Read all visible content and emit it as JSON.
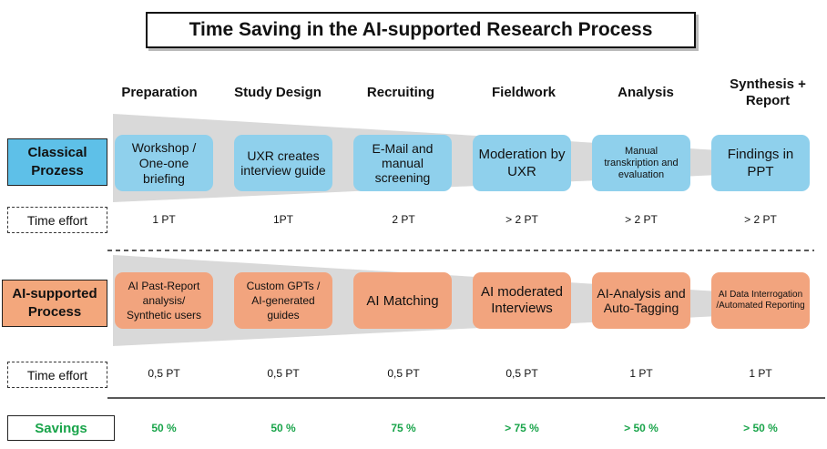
{
  "title": "Time Saving in the AI-supported Research Process",
  "stages": [
    "Preparation",
    "Study Design",
    "Recruiting",
    "Fieldwork",
    "Analysis",
    "Synthesis + Report"
  ],
  "classical": {
    "label": "Classical Prozess",
    "steps": [
      "Workshop / One-one briefing",
      "UXR creates interview guide",
      "E-Mail and manual screening",
      "Moderation by UXR",
      "Manual transkription and evaluation",
      "Findings in PPT"
    ],
    "effort_label": "Time effort",
    "effort": [
      "1 PT",
      "1PT",
      "2 PT",
      "> 2 PT",
      "> 2 PT",
      "> 2 PT"
    ]
  },
  "ai": {
    "label": "AI-supported Process",
    "steps": [
      "AI Past-Report analysis/ Synthetic users",
      "Custom GPTs / AI-generated guides",
      "AI Matching",
      "AI moderated Interviews",
      "AI-Analysis and Auto-Tagging",
      "AI Data Interrogation /Automated Reporting"
    ],
    "effort_label": "Time effort",
    "effort": [
      "0,5 PT",
      "0,5 PT",
      "0,5 PT",
      "0,5 PT",
      "1 PT",
      "1 PT"
    ]
  },
  "savings": {
    "label": "Savings",
    "values": [
      "50 %",
      "50 %",
      "75 %",
      "> 75 %",
      "> 50 %",
      "> 50 %"
    ]
  },
  "colors": {
    "classical_box": "#8fd0ec",
    "classical_label": "#5ec0e8",
    "ai_box": "#f2a47e",
    "ai_label": "#f3a77c",
    "funnel": "#d9d9d9",
    "savings": "#19a44a"
  }
}
